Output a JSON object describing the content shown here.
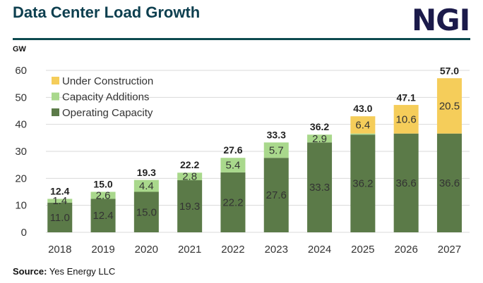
{
  "header": {
    "title": "Data Center Load Growth",
    "logo": "NGI"
  },
  "source": {
    "label": "Source:",
    "text": "Yes Energy LLC"
  },
  "chart_data": {
    "type": "bar",
    "stacked": true,
    "title": "Data Center Load Growth",
    "ylabel": "GW",
    "xlabel": "",
    "ylim": [
      0,
      60
    ],
    "yticks": [
      0,
      10,
      20,
      30,
      40,
      50,
      60
    ],
    "grid": true,
    "legend_position": "top-left",
    "categories": [
      "2018",
      "2019",
      "2020",
      "2021",
      "2022",
      "2023",
      "2024",
      "2025",
      "2026",
      "2027"
    ],
    "series": [
      {
        "name": "Operating Capacity",
        "color": "#5b7a48",
        "values": [
          11.0,
          12.4,
          15.0,
          19.3,
          22.2,
          27.6,
          33.3,
          36.2,
          36.6,
          36.6
        ],
        "labels": [
          "11.0",
          "12.4",
          "15.0",
          "19.3",
          "22.2",
          "27.6",
          "33.3",
          "36.2",
          "36.6",
          "36.6"
        ]
      },
      {
        "name": "Capacity Additions",
        "color": "#a9d88c",
        "values": [
          1.4,
          2.6,
          4.4,
          2.8,
          5.4,
          5.7,
          2.9,
          0.4,
          0,
          0
        ],
        "labels": [
          "1.4",
          "2.6",
          "4.4",
          "2.8",
          "5.4",
          "5.7",
          "2.9",
          "",
          "",
          ""
        ]
      },
      {
        "name": "Under Construction",
        "color": "#f5cd5a",
        "values": [
          0,
          0,
          0,
          0,
          0,
          0,
          0,
          6.4,
          10.6,
          20.5
        ],
        "labels": [
          "",
          "",
          "",
          "",
          "",
          "",
          "",
          "6.4",
          "10.6",
          "20.5"
        ]
      }
    ],
    "totals": [
      "12.4",
      "15.0",
      "19.3",
      "22.2",
      "27.6",
      "33.3",
      "36.2",
      "43.0",
      "47.1",
      "57.0"
    ]
  }
}
